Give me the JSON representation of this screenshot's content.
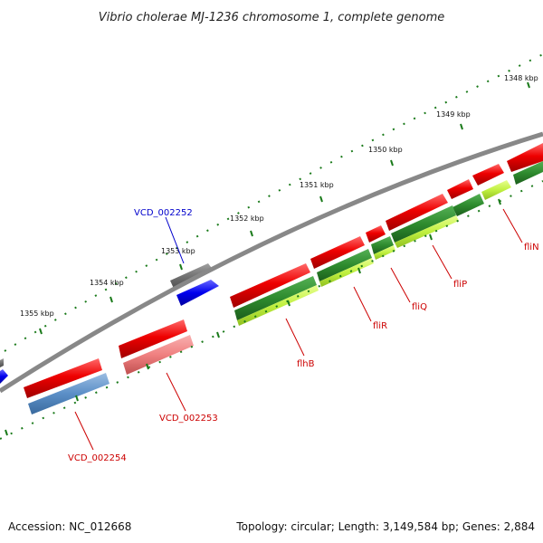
{
  "map": {
    "title": "Vibrio cholerae MJ-1236 chromosome 1, complete genome",
    "accession_text": "Accession: NC_012668",
    "summary_text": "Topology: circular; Length: 3,149,584 bp; Genes: 2,884",
    "tick_labels": [
      "1348 kbp",
      "1349 kbp",
      "1350 kbp",
      "1351 kbp",
      "1352 kbp",
      "1353 kbp",
      "1354 kbp",
      "1355 kbp"
    ],
    "gene_labels": [
      "VCD_002252",
      "VCD_002253",
      "VCD_002254",
      "flhB",
      "fliR",
      "fliQ",
      "fliP",
      "fliN"
    ],
    "colors": {
      "backbone": "#888888",
      "cds": "#ee0000",
      "cds_light": "#f08080",
      "gene_green": "#2e8b2e",
      "gene_lime": "#c0f040",
      "blue": "#0000ee",
      "steelblue": "#5b8fc7",
      "gray": "#707070",
      "tick": "#1a7a1a",
      "label_red": "#cc0000",
      "label_blue": "#0000cc"
    }
  }
}
